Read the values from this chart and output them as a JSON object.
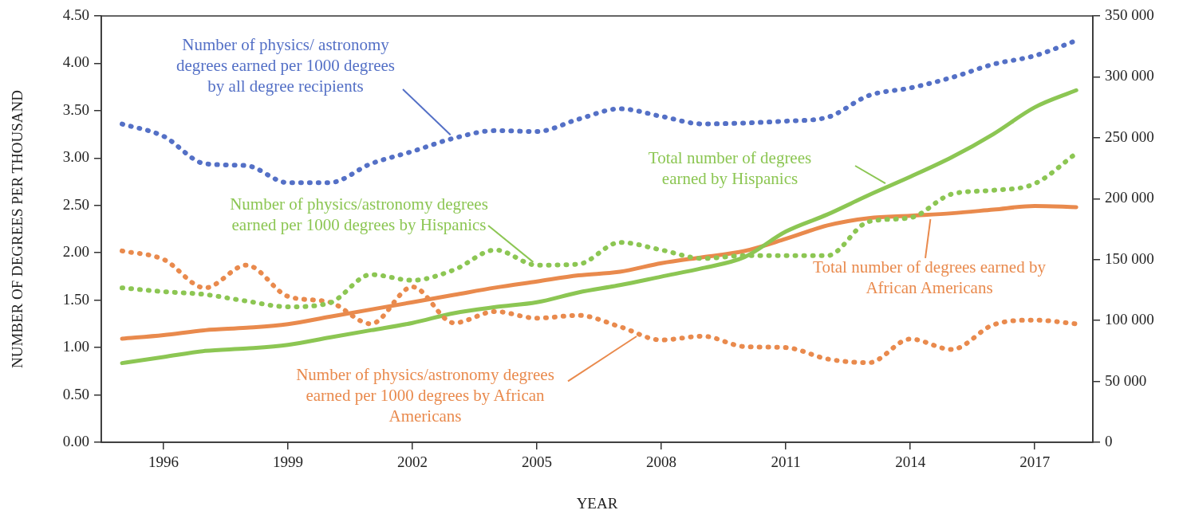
{
  "chart_data": {
    "type": "line",
    "xlabel": "YEAR",
    "ylabel": "NUMBER OF DEGREES PER THOUSAND",
    "marker": "none",
    "x": [
      1995,
      1996,
      1997,
      1998,
      1999,
      2000,
      2001,
      2002,
      2003,
      2004,
      2005,
      2006,
      2007,
      2008,
      2009,
      2010,
      2011,
      2012,
      2013,
      2014,
      2015,
      2016,
      2017,
      2018
    ],
    "xlim": [
      1994.5,
      2018.4
    ],
    "xticks": [
      1996,
      1999,
      2002,
      2005,
      2008,
      2011,
      2014,
      2017
    ],
    "ylim": [
      0,
      4.5
    ],
    "yticks": [
      {
        "value": 0,
        "label": "0.00"
      },
      {
        "value": 0.5,
        "label": "0.50"
      },
      {
        "value": 1,
        "label": "1.00"
      },
      {
        "value": 1.5,
        "label": "1.50"
      },
      {
        "value": 2,
        "label": "2.00"
      },
      {
        "value": 2.5,
        "label": "2.50"
      },
      {
        "value": 3,
        "label": "3.00"
      },
      {
        "value": 3.5,
        "label": "3.50"
      },
      {
        "value": 4,
        "label": "4.00"
      },
      {
        "value": 4.5,
        "label": "4.50"
      }
    ],
    "y2lim": [
      0,
      350000
    ],
    "y2ticks": [
      0,
      {
        "value": 50000,
        "label": "50 000"
      },
      {
        "value": 100000,
        "label": "100 000"
      },
      {
        "value": 150000,
        "label": "150 000"
      },
      {
        "value": 200000,
        "label": "200 000"
      },
      {
        "value": 250000,
        "label": "250 000"
      },
      {
        "value": 300000,
        "label": "300 000"
      },
      {
        "value": 350000,
        "label": "350 000"
      }
    ],
    "series": [
      {
        "name": "Number of physics/ astronomy degrees earned per 1000 degrees by all degree recipients",
        "color": "#5470c6",
        "line_style": "dotted",
        "values": [
          3.36,
          3.23,
          2.94,
          2.92,
          2.74,
          2.74,
          2.94,
          3.07,
          3.21,
          3.29,
          3.28,
          3.41,
          3.52,
          3.44,
          3.36,
          3.37,
          3.39,
          3.43,
          3.66,
          3.74,
          3.85,
          3.99,
          4.08,
          4.24
        ]
      },
      {
        "name": "Number of physics/astronomy degrees earned per 1000 degrees by Hispanics",
        "color": "#8cc653",
        "line_style": "dotted",
        "values": [
          1.63,
          1.59,
          1.56,
          1.49,
          1.43,
          1.47,
          1.77,
          1.71,
          1.82,
          2.03,
          1.87,
          1.88,
          2.11,
          2.03,
          1.94,
          1.97,
          1.97,
          1.97,
          2.33,
          2.37,
          2.62,
          2.66,
          2.73,
          3.05
        ]
      },
      {
        "name": "Number of physics/astronomy degrees earned per 1000 degrees by African Americans",
        "color": "#e98a4d",
        "line_style": "dotted",
        "values": [
          2.02,
          1.93,
          1.63,
          1.87,
          1.54,
          1.48,
          1.25,
          1.64,
          1.26,
          1.38,
          1.31,
          1.34,
          1.22,
          1.08,
          1.12,
          1.01,
          1.0,
          0.88,
          0.84,
          1.09,
          0.98,
          1.24,
          1.29,
          1.25
        ]
      },
      {
        "name": "Total number of degrees earned by Hispanics",
        "color": "#8cc653",
        "line_style": "solid",
        "axis": "y2",
        "values": [
          65000,
          70000,
          75000,
          77000,
          80000,
          86000,
          92000,
          98000,
          106000,
          111000,
          115000,
          123000,
          129000,
          136000,
          143000,
          152000,
          173000,
          187000,
          203000,
          218000,
          234000,
          253000,
          275000,
          289000
        ]
      },
      {
        "name": "Total number of degrees earned by African Americans",
        "color": "#e98a4d",
        "line_style": "solid",
        "axis": "y2",
        "values": [
          85000,
          88000,
          92000,
          94000,
          97000,
          103000,
          109000,
          115000,
          121000,
          127000,
          132000,
          137000,
          140000,
          147000,
          152000,
          157000,
          167000,
          178000,
          184000,
          186000,
          188000,
          191000,
          194000,
          193000
        ]
      }
    ]
  }
}
